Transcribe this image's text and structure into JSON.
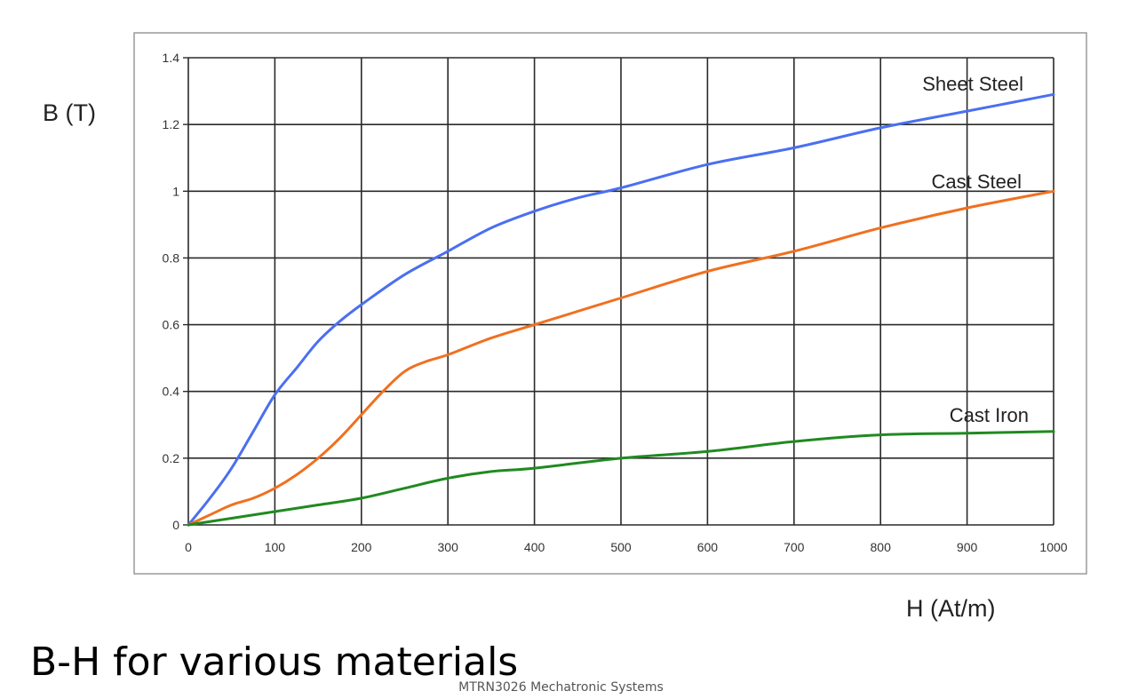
{
  "slide": {
    "title": "B-H for various materials",
    "footer": "MTRN3026 Mechatronic Systems"
  },
  "chart_data": {
    "type": "line",
    "xlabel": "H (At/m)",
    "ylabel": "B (T)",
    "xlim": [
      0,
      1000
    ],
    "ylim": [
      0,
      1.4
    ],
    "xticks": [
      0,
      100,
      200,
      300,
      400,
      500,
      600,
      700,
      800,
      900,
      1000
    ],
    "xtick_labels": [
      "0",
      "100",
      "200",
      "300",
      "400",
      "500",
      "600",
      "700",
      "800",
      "900",
      "1000"
    ],
    "yticks": [
      0,
      0.2,
      0.4,
      0.6,
      0.8,
      1,
      1.2,
      1.4
    ],
    "ytick_labels": [
      "0",
      "0.2",
      "0.4",
      "0.6",
      "0.8",
      "1",
      "1.2",
      "1.4"
    ],
    "grid": true,
    "legend": "none",
    "series": [
      {
        "name": "Sheet Steel",
        "color": "#4a6ff0",
        "x": [
          0,
          25,
          50,
          75,
          100,
          125,
          150,
          175,
          200,
          250,
          300,
          350,
          400,
          450,
          500,
          600,
          700,
          800,
          900,
          1000
        ],
        "y": [
          0,
          0.08,
          0.17,
          0.28,
          0.39,
          0.47,
          0.55,
          0.61,
          0.66,
          0.75,
          0.82,
          0.89,
          0.94,
          0.98,
          1.01,
          1.08,
          1.13,
          1.19,
          1.24,
          1.29
        ]
      },
      {
        "name": "Cast Steel",
        "color": "#f07020",
        "x": [
          0,
          25,
          50,
          75,
          100,
          125,
          150,
          175,
          200,
          225,
          250,
          275,
          300,
          350,
          400,
          450,
          500,
          600,
          700,
          800,
          900,
          1000
        ],
        "y": [
          0,
          0.03,
          0.06,
          0.08,
          0.11,
          0.15,
          0.2,
          0.26,
          0.33,
          0.4,
          0.46,
          0.49,
          0.51,
          0.56,
          0.6,
          0.64,
          0.68,
          0.76,
          0.82,
          0.89,
          0.95,
          1.0
        ]
      },
      {
        "name": "Cast Iron",
        "color": "#208a20",
        "x": [
          0,
          50,
          100,
          150,
          200,
          250,
          300,
          350,
          400,
          500,
          600,
          700,
          800,
          900,
          1000
        ],
        "y": [
          0,
          0.02,
          0.04,
          0.06,
          0.08,
          0.11,
          0.14,
          0.16,
          0.17,
          0.2,
          0.22,
          0.25,
          0.27,
          0.275,
          0.28
        ]
      }
    ]
  }
}
